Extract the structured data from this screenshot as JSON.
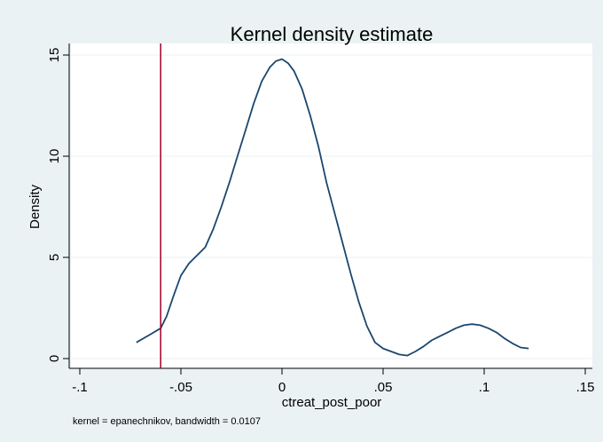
{
  "chart_data": {
    "type": "line",
    "title": "Kernel density estimate",
    "xlabel": "ctreat_post_poor",
    "ylabel": "Density",
    "note": "kernel = epanechnikov, bandwidth = 0.0107",
    "xlim": [
      -0.1,
      0.15
    ],
    "ylim": [
      0,
      15
    ],
    "xticks": [
      {
        "value": -0.1,
        "label": "-.1"
      },
      {
        "value": -0.05,
        "label": "-.05"
      },
      {
        "value": 0,
        "label": "0"
      },
      {
        "value": 0.05,
        "label": ".05"
      },
      {
        "value": 0.1,
        "label": ".1"
      },
      {
        "value": 0.15,
        "label": ".15"
      }
    ],
    "yticks": [
      {
        "value": 0,
        "label": "0"
      },
      {
        "value": 5,
        "label": "5"
      },
      {
        "value": 10,
        "label": "10"
      },
      {
        "value": 15,
        "label": "15"
      }
    ],
    "grid": true,
    "vline": {
      "x": -0.06,
      "color": "#a0002a"
    },
    "series": [
      {
        "color": "#1a476f",
        "x": [
          -0.072,
          -0.065,
          -0.06,
          -0.057,
          -0.054,
          -0.05,
          -0.046,
          -0.042,
          -0.038,
          -0.034,
          -0.03,
          -0.026,
          -0.022,
          -0.018,
          -0.014,
          -0.01,
          -0.006,
          -0.003,
          0.0,
          0.003,
          0.006,
          0.01,
          0.014,
          0.018,
          0.022,
          0.026,
          0.03,
          0.034,
          0.038,
          0.042,
          0.046,
          0.05,
          0.054,
          0.058,
          0.062,
          0.066,
          0.07,
          0.074,
          0.078,
          0.082,
          0.086,
          0.09,
          0.094,
          0.098,
          0.102,
          0.106,
          0.11,
          0.114,
          0.118,
          0.122
        ],
        "y": [
          0.8,
          1.2,
          1.5,
          2.1,
          3.0,
          4.1,
          4.7,
          5.1,
          5.5,
          6.4,
          7.5,
          8.7,
          10.0,
          11.3,
          12.6,
          13.7,
          14.4,
          14.7,
          14.8,
          14.6,
          14.2,
          13.3,
          12.0,
          10.5,
          8.7,
          7.2,
          5.7,
          4.2,
          2.8,
          1.6,
          0.8,
          0.5,
          0.35,
          0.2,
          0.15,
          0.35,
          0.6,
          0.9,
          1.1,
          1.3,
          1.5,
          1.65,
          1.7,
          1.65,
          1.5,
          1.3,
          1.0,
          0.75,
          0.55,
          0.5
        ]
      }
    ]
  }
}
